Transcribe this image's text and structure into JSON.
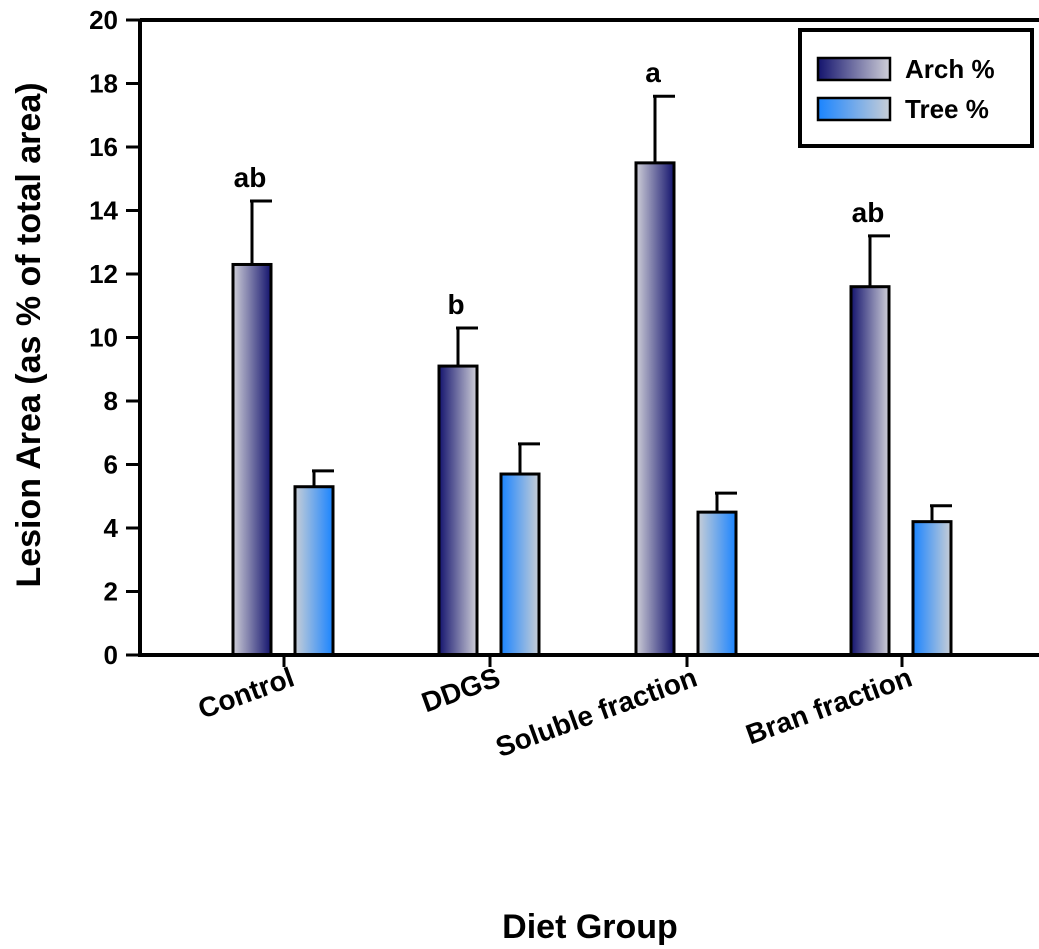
{
  "chart_data": {
    "type": "bar",
    "title": "",
    "xlabel": "Diet Group",
    "ylabel": "Lesion Area (as % of total area)",
    "ylim": [
      0,
      20
    ],
    "yticks": [
      0,
      2,
      4,
      6,
      8,
      10,
      12,
      14,
      16,
      18,
      20
    ],
    "categories": [
      "Control",
      "DDGS",
      "Soluble fraction",
      "Bran fraction"
    ],
    "series": [
      {
        "name": "Arch %",
        "values": [
          12.3,
          9.1,
          15.5,
          11.6
        ],
        "errors": [
          2.0,
          1.2,
          2.1,
          1.6
        ],
        "color_dark": "#14146e",
        "color_light": "#c8c8d4"
      },
      {
        "name": "Tree %",
        "values": [
          5.3,
          5.7,
          4.5,
          4.2
        ],
        "errors": [
          0.5,
          0.95,
          0.6,
          0.5
        ],
        "color_dark": "#1a84ff",
        "color_light": "#c4cdd8"
      }
    ],
    "significance_labels": [
      "ab",
      "b",
      "a",
      "ab"
    ],
    "legend_position": "top-right",
    "grid": false
  }
}
